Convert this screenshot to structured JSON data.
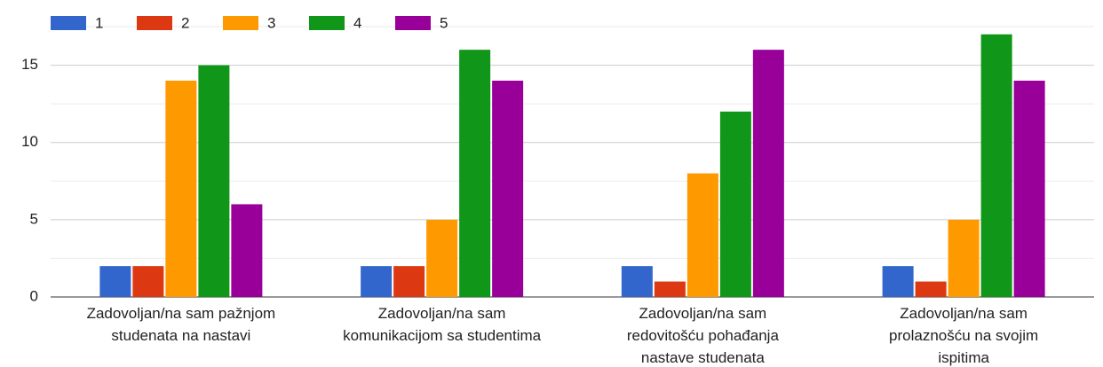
{
  "chart_data": {
    "type": "bar",
    "categories": [
      [
        "Zadovoljan/na sam pažnjom",
        "studenata na nastavi"
      ],
      [
        "Zadovoljan/na sam",
        "komunikacijom sa studentima"
      ],
      [
        "Zadovoljan/na sam",
        "redovitošću pohađanja",
        "nastave studenata"
      ],
      [
        "Zadovoljan/na sam",
        "prolaznošću na svojim",
        "ispitima"
      ]
    ],
    "series": [
      {
        "name": "1",
        "color": "#3366cc",
        "values": [
          2,
          2,
          2,
          2
        ]
      },
      {
        "name": "2",
        "color": "#dc3912",
        "values": [
          2,
          2,
          1,
          1
        ]
      },
      {
        "name": "3",
        "color": "#ff9900",
        "values": [
          14,
          5,
          8,
          5
        ]
      },
      {
        "name": "4",
        "color": "#109618",
        "values": [
          15,
          16,
          12,
          17
        ]
      },
      {
        "name": "5",
        "color": "#990099",
        "values": [
          6,
          14,
          16,
          14
        ]
      }
    ],
    "ylim": [
      0,
      17.5
    ],
    "yticks": [
      0,
      5,
      10,
      15
    ],
    "minor_yticks": [
      2.5,
      7.5,
      12.5,
      17.5
    ],
    "grid": true,
    "legend": "top"
  }
}
